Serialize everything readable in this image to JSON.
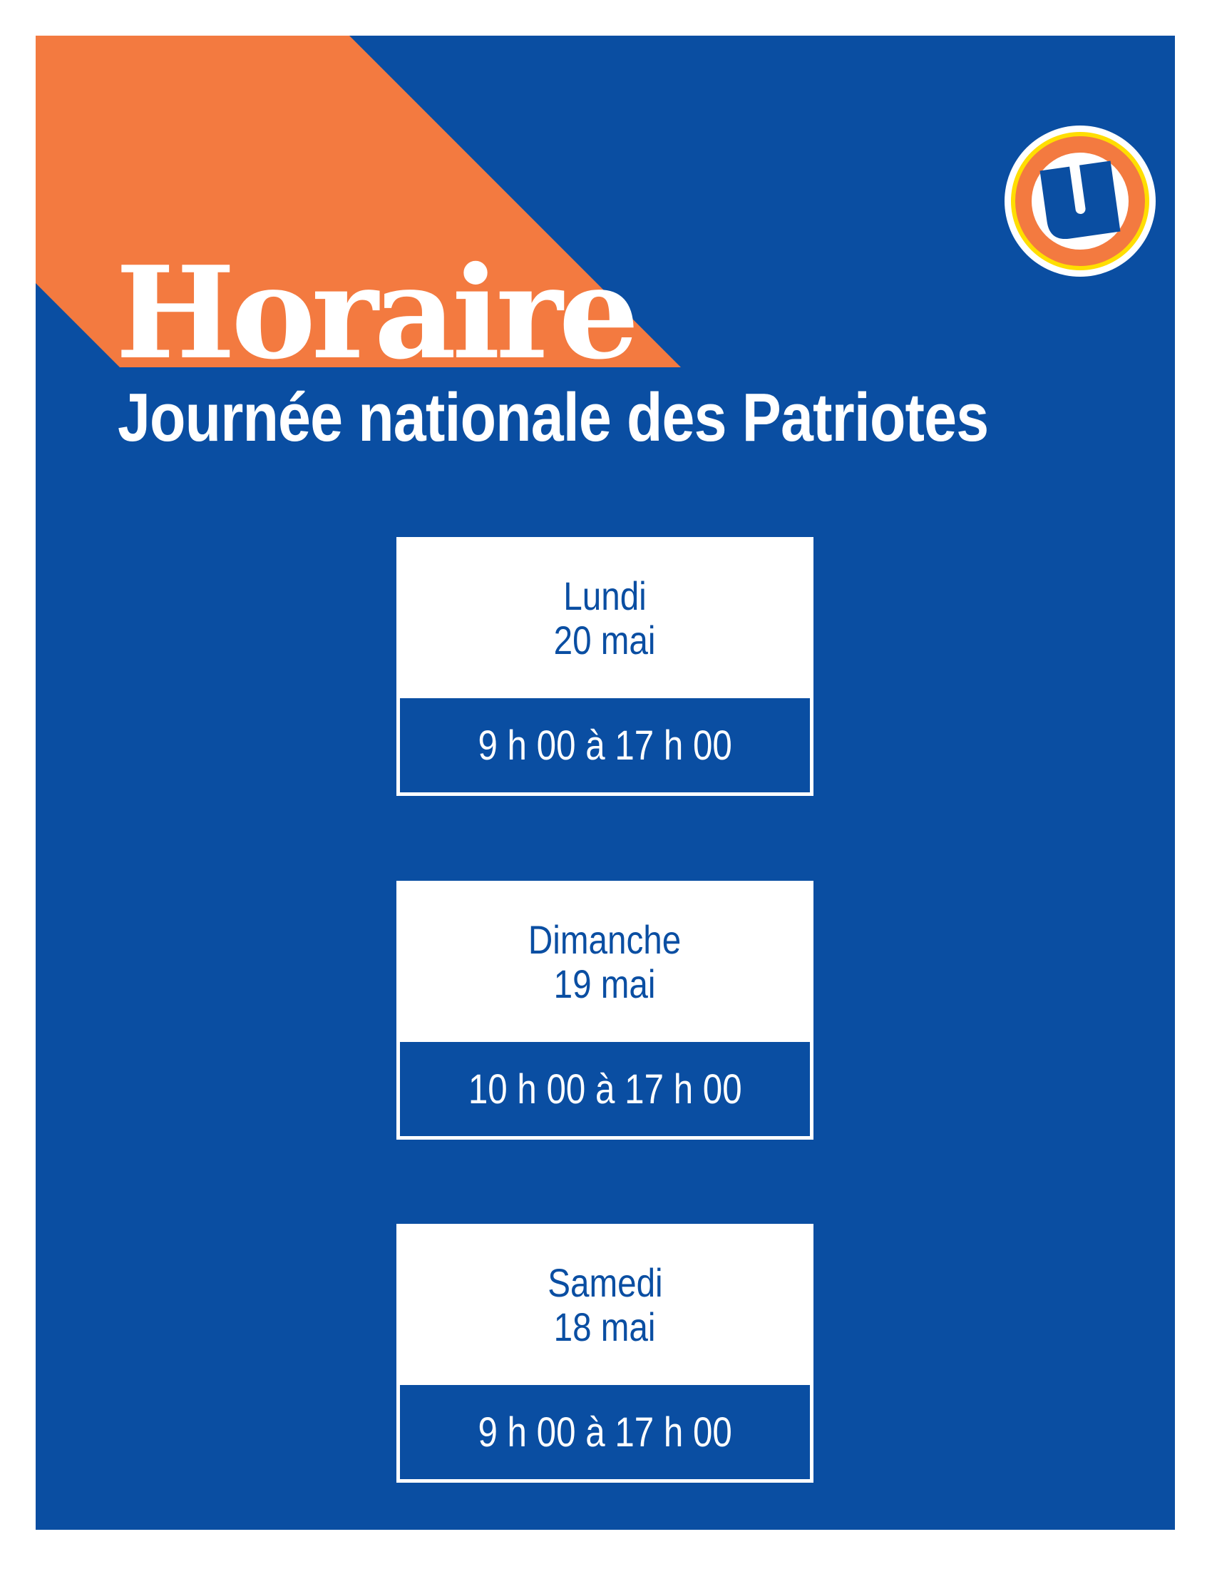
{
  "colors": {
    "background_blue": "#0a4ea2",
    "accent_orange": "#f37a40",
    "logo_yellow": "#ffde00",
    "white": "#ffffff"
  },
  "logo": {
    "icon": "u-logo-icon",
    "lettering": "U"
  },
  "header": {
    "title": "Horaire",
    "subtitle": "Journée nationale des Patriotes"
  },
  "schedule": [
    {
      "day": "Lundi",
      "date": "20 mai",
      "hours": "9 h 00 à 17 h 00"
    },
    {
      "day": "Dimanche",
      "date": "19 mai",
      "hours": "10 h 00 à 17 h 00"
    },
    {
      "day": "Samedi",
      "date": "18 mai",
      "hours": "9 h 00 à 17 h 00"
    }
  ]
}
